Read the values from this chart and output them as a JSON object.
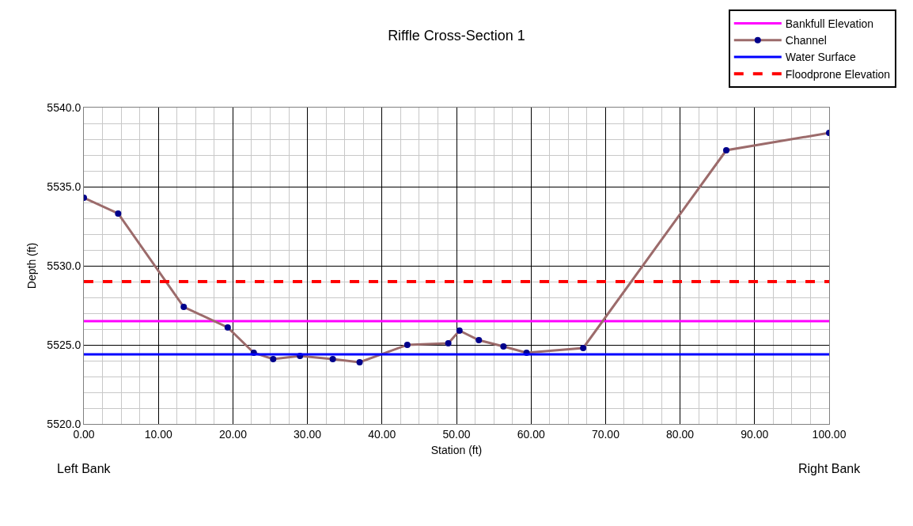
{
  "chart_data": {
    "type": "line",
    "title": "Riffle Cross-Section 1",
    "xlabel": "Station (ft)",
    "ylabel": "Depth (ft)",
    "annotations": [
      "Left Bank",
      "Right Bank"
    ],
    "xlim": [
      0,
      100
    ],
    "xticks": [
      {
        "value": 0,
        "label": "0.00"
      },
      {
        "value": 10,
        "label": "10.00"
      },
      {
        "value": 20,
        "label": "20.00"
      },
      {
        "value": 30,
        "label": "30.00"
      },
      {
        "value": 40,
        "label": "40.00"
      },
      {
        "value": 50,
        "label": "50.00"
      },
      {
        "value": 60,
        "label": "60.00"
      },
      {
        "value": 70,
        "label": "70.00"
      },
      {
        "value": 80,
        "label": "80.00"
      },
      {
        "value": 90,
        "label": "90.00"
      },
      {
        "value": 100,
        "label": "100.00"
      }
    ],
    "ylim": [
      5520,
      5540
    ],
    "yticks": [
      {
        "value": 5520,
        "label": "5520.0"
      },
      {
        "value": 5525,
        "label": "5525.0"
      },
      {
        "value": 5530,
        "label": "5530.0"
      },
      {
        "value": 5535,
        "label": "5535.0"
      },
      {
        "value": 5540,
        "label": "5540.0"
      }
    ],
    "grid": true,
    "legend": "top right",
    "series": [
      {
        "name": "Bankfull Elevation",
        "color": "#ff00ff",
        "x": [
          0,
          100
        ],
        "values": [
          5526.5,
          5526.5
        ],
        "marker": "none",
        "line_style": "solid"
      },
      {
        "name": "Channel",
        "color": "#9c6b6b",
        "x": [
          0,
          4.6,
          13.4,
          19.3,
          22.8,
          25.4,
          29.0,
          33.4,
          37.0,
          43.4,
          48.9,
          50.4,
          53.0,
          56.3,
          59.4,
          67.0,
          86.2,
          100
        ],
        "values": [
          5534.3,
          5533.3,
          5527.4,
          5526.1,
          5524.5,
          5524.1,
          5524.3,
          5524.1,
          5523.9,
          5525.0,
          5525.1,
          5525.9,
          5525.3,
          5524.9,
          5524.5,
          5524.8,
          5537.3,
          5538.4
        ],
        "marker": "circle",
        "line_style": "solid"
      },
      {
        "name": "Water Surface",
        "color": "#0000ff",
        "x": [
          0,
          100
        ],
        "values": [
          5524.4,
          5524.4
        ],
        "marker": "none",
        "line_style": "solid"
      },
      {
        "name": "Floodprone Elevation",
        "color": "#ff0000",
        "x": [
          0,
          100
        ],
        "values": [
          5529.0,
          5529.0
        ],
        "marker": "none",
        "line_style": "dashed"
      }
    ]
  }
}
